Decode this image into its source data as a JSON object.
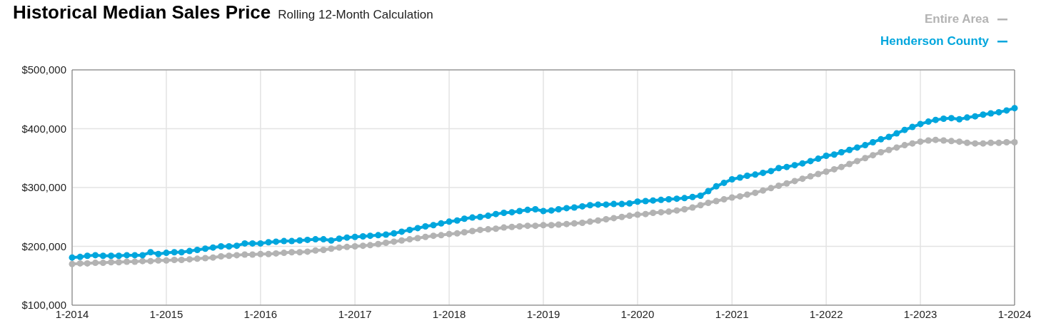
{
  "chart_data": {
    "type": "line",
    "title": "Historical Median Sales Price",
    "subtitle": "Rolling 12-Month Calculation",
    "x": [
      "2014-01",
      "2014-02",
      "2014-03",
      "2014-04",
      "2014-05",
      "2014-06",
      "2014-07",
      "2014-08",
      "2014-09",
      "2014-10",
      "2014-11",
      "2014-12",
      "2015-01",
      "2015-02",
      "2015-03",
      "2015-04",
      "2015-05",
      "2015-06",
      "2015-07",
      "2015-08",
      "2015-09",
      "2015-10",
      "2015-11",
      "2015-12",
      "2016-01",
      "2016-02",
      "2016-03",
      "2016-04",
      "2016-05",
      "2016-06",
      "2016-07",
      "2016-08",
      "2016-09",
      "2016-10",
      "2016-11",
      "2016-12",
      "2017-01",
      "2017-02",
      "2017-03",
      "2017-04",
      "2017-05",
      "2017-06",
      "2017-07",
      "2017-08",
      "2017-09",
      "2017-10",
      "2017-11",
      "2017-12",
      "2018-01",
      "2018-02",
      "2018-03",
      "2018-04",
      "2018-05",
      "2018-06",
      "2018-07",
      "2018-08",
      "2018-09",
      "2018-10",
      "2018-11",
      "2018-12",
      "2019-01",
      "2019-02",
      "2019-03",
      "2019-04",
      "2019-05",
      "2019-06",
      "2019-07",
      "2019-08",
      "2019-09",
      "2019-10",
      "2019-11",
      "2019-12",
      "2020-01",
      "2020-02",
      "2020-03",
      "2020-04",
      "2020-05",
      "2020-06",
      "2020-07",
      "2020-08",
      "2020-09",
      "2020-10",
      "2020-11",
      "2020-12",
      "2021-01",
      "2021-02",
      "2021-03",
      "2021-04",
      "2021-05",
      "2021-06",
      "2021-07",
      "2021-08",
      "2021-09",
      "2021-10",
      "2021-11",
      "2021-12",
      "2022-01",
      "2022-02",
      "2022-03",
      "2022-04",
      "2022-05",
      "2022-06",
      "2022-07",
      "2022-08",
      "2022-09",
      "2022-10",
      "2022-11",
      "2022-12",
      "2023-01",
      "2023-02",
      "2023-03",
      "2023-04",
      "2023-05",
      "2023-06",
      "2023-07",
      "2023-08",
      "2023-09",
      "2023-10",
      "2023-11",
      "2023-12",
      "2024-01"
    ],
    "series": [
      {
        "name": "Entire Area",
        "color": "#b3b3b3",
        "values": [
          170000,
          171000,
          171000,
          172000,
          172000,
          173000,
          173000,
          174000,
          174000,
          175000,
          175000,
          176000,
          176000,
          177000,
          177000,
          178000,
          179000,
          180000,
          181000,
          183000,
          184000,
          185000,
          186000,
          186000,
          187000,
          187000,
          188000,
          189000,
          190000,
          190000,
          191000,
          193000,
          194000,
          196000,
          198000,
          199000,
          200000,
          201000,
          202000,
          204000,
          206000,
          208000,
          210000,
          212000,
          214000,
          216000,
          218000,
          219000,
          221000,
          222000,
          224000,
          226000,
          228000,
          229000,
          230000,
          232000,
          233000,
          234000,
          235000,
          235000,
          236000,
          236000,
          237000,
          238000,
          239000,
          240000,
          242000,
          244000,
          246000,
          248000,
          250000,
          252000,
          254000,
          255000,
          257000,
          258000,
          259000,
          261000,
          263000,
          266000,
          270000,
          274000,
          277000,
          280000,
          283000,
          285000,
          288000,
          291000,
          295000,
          299000,
          303000,
          307000,
          311000,
          315000,
          319000,
          323000,
          327000,
          331000,
          335000,
          340000,
          345000,
          350000,
          355000,
          360000,
          364000,
          368000,
          372000,
          375000,
          378000,
          380000,
          381000,
          380000,
          379000,
          378000,
          376000,
          375000,
          375000,
          376000,
          376000,
          377000,
          377000
        ]
      },
      {
        "name": "Henderson County",
        "color": "#00a6dd",
        "values": [
          181000,
          182000,
          184000,
          185000,
          184000,
          184000,
          184000,
          185000,
          185000,
          185000,
          190000,
          187000,
          189000,
          190000,
          190000,
          192000,
          194000,
          196000,
          198000,
          200000,
          200000,
          201000,
          205000,
          205000,
          205000,
          207000,
          208000,
          209000,
          209000,
          210000,
          211000,
          212000,
          212000,
          210000,
          213000,
          215000,
          216000,
          217000,
          218000,
          219000,
          220000,
          222000,
          225000,
          228000,
          231000,
          234000,
          236000,
          239000,
          242000,
          244000,
          247000,
          249000,
          250000,
          252000,
          255000,
          257000,
          258000,
          260000,
          262000,
          263000,
          260000,
          261000,
          263000,
          265000,
          266000,
          268000,
          270000,
          271000,
          271000,
          272000,
          272000,
          273000,
          276000,
          277000,
          278000,
          279000,
          280000,
          281000,
          282000,
          284000,
          286000,
          294000,
          302000,
          308000,
          314000,
          317000,
          320000,
          322000,
          325000,
          328000,
          333000,
          335000,
          338000,
          341000,
          345000,
          349000,
          354000,
          356000,
          360000,
          364000,
          368000,
          372000,
          377000,
          382000,
          386000,
          392000,
          398000,
          403000,
          408000,
          412000,
          415000,
          417000,
          418000,
          416000,
          419000,
          421000,
          424000,
          426000,
          428000,
          431000,
          435000
        ]
      }
    ],
    "ylim": [
      100000,
      500000
    ],
    "yticks": [
      {
        "value": 100000,
        "label": "$100,000"
      },
      {
        "value": 200000,
        "label": "$200,000"
      },
      {
        "value": 300000,
        "label": "$300,000"
      },
      {
        "value": 400000,
        "label": "$400,000"
      },
      {
        "value": 500000,
        "label": "$500,000"
      }
    ],
    "xlim": [
      "2014-01",
      "2024-01"
    ],
    "xticks": [
      {
        "value": "2014-01",
        "label": "1-2014"
      },
      {
        "value": "2015-01",
        "label": "1-2015"
      },
      {
        "value": "2016-01",
        "label": "1-2016"
      },
      {
        "value": "2017-01",
        "label": "1-2017"
      },
      {
        "value": "2018-01",
        "label": "1-2018"
      },
      {
        "value": "2019-01",
        "label": "1-2019"
      },
      {
        "value": "2020-01",
        "label": "1-2020"
      },
      {
        "value": "2021-01",
        "label": "1-2021"
      },
      {
        "value": "2022-01",
        "label": "1-2022"
      },
      {
        "value": "2023-01",
        "label": "1-2023"
      },
      {
        "value": "2024-01",
        "label": "1-2024"
      }
    ],
    "grid": true,
    "legend": "top right",
    "marker": "circle",
    "line_style": "solid"
  }
}
